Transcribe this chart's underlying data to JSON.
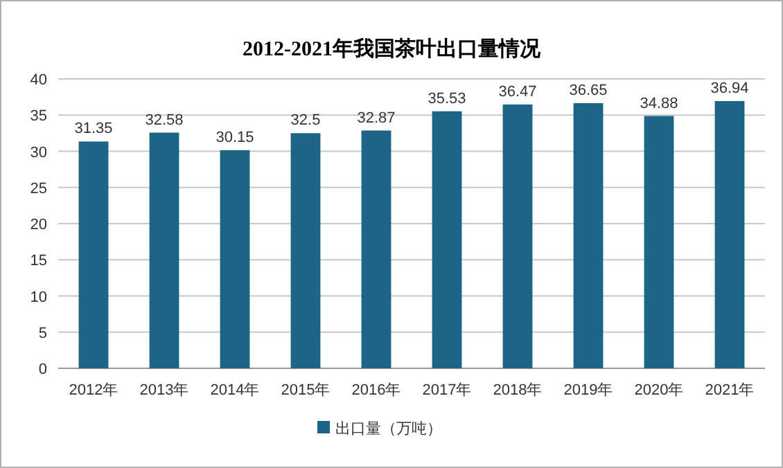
{
  "chart_data": {
    "type": "bar",
    "title": "2012-2021年我国茶叶出口量情况",
    "categories": [
      "2012年",
      "2013年",
      "2014年",
      "2015年",
      "2016年",
      "2017年",
      "2018年",
      "2019年",
      "2020年",
      "2021年"
    ],
    "series": [
      {
        "name": "出口量（万吨）",
        "color": "#1c6587",
        "values": [
          31.35,
          32.58,
          30.15,
          32.5,
          32.87,
          35.53,
          36.47,
          36.65,
          34.88,
          36.94
        ]
      }
    ],
    "ylim": [
      0,
      40
    ],
    "yticks": [
      0,
      5,
      10,
      15,
      20,
      25,
      30,
      35,
      40
    ],
    "grid": "y",
    "legend": "bottom",
    "data_labels": true
  }
}
